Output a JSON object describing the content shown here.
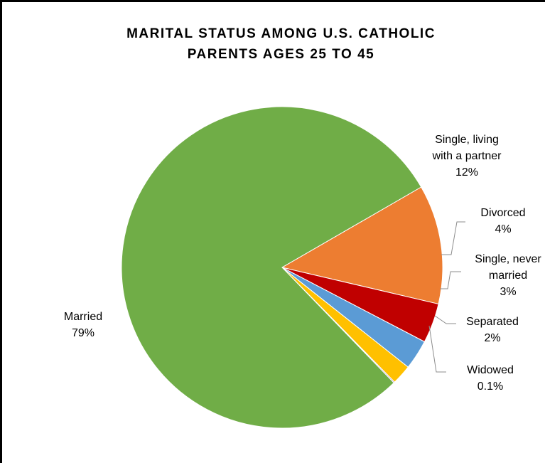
{
  "chart_data": {
    "type": "pie",
    "title_lines": [
      "MARITAL STATUS AMONG U.S. CATHOLIC",
      "PARENTS AGES 25 TO 45"
    ],
    "slices": [
      {
        "id": "single-living-partner",
        "label_lines": [
          "Single, living",
          "with a partner"
        ],
        "value": 12,
        "value_label": "12%",
        "color": "#ED7D31"
      },
      {
        "id": "divorced",
        "label_lines": [
          "Divorced"
        ],
        "value": 4,
        "value_label": "4%",
        "color": "#C00000"
      },
      {
        "id": "single-never-married",
        "label_lines": [
          "Single, never",
          "married"
        ],
        "value": 3,
        "value_label": "3%",
        "color": "#5B9BD5"
      },
      {
        "id": "separated",
        "label_lines": [
          "Separated"
        ],
        "value": 2,
        "value_label": "2%",
        "color": "#FFC000"
      },
      {
        "id": "widowed",
        "label_lines": [
          "Widowed"
        ],
        "value": 0.1,
        "value_label": "0.1%",
        "color": "#7030A0"
      },
      {
        "id": "married",
        "label_lines": [
          "Married"
        ],
        "value": 79,
        "value_label": "79%",
        "color": "#70AD47"
      }
    ],
    "start_slice_leading_edge_angle_deg": 60,
    "direction": "clockwise"
  }
}
